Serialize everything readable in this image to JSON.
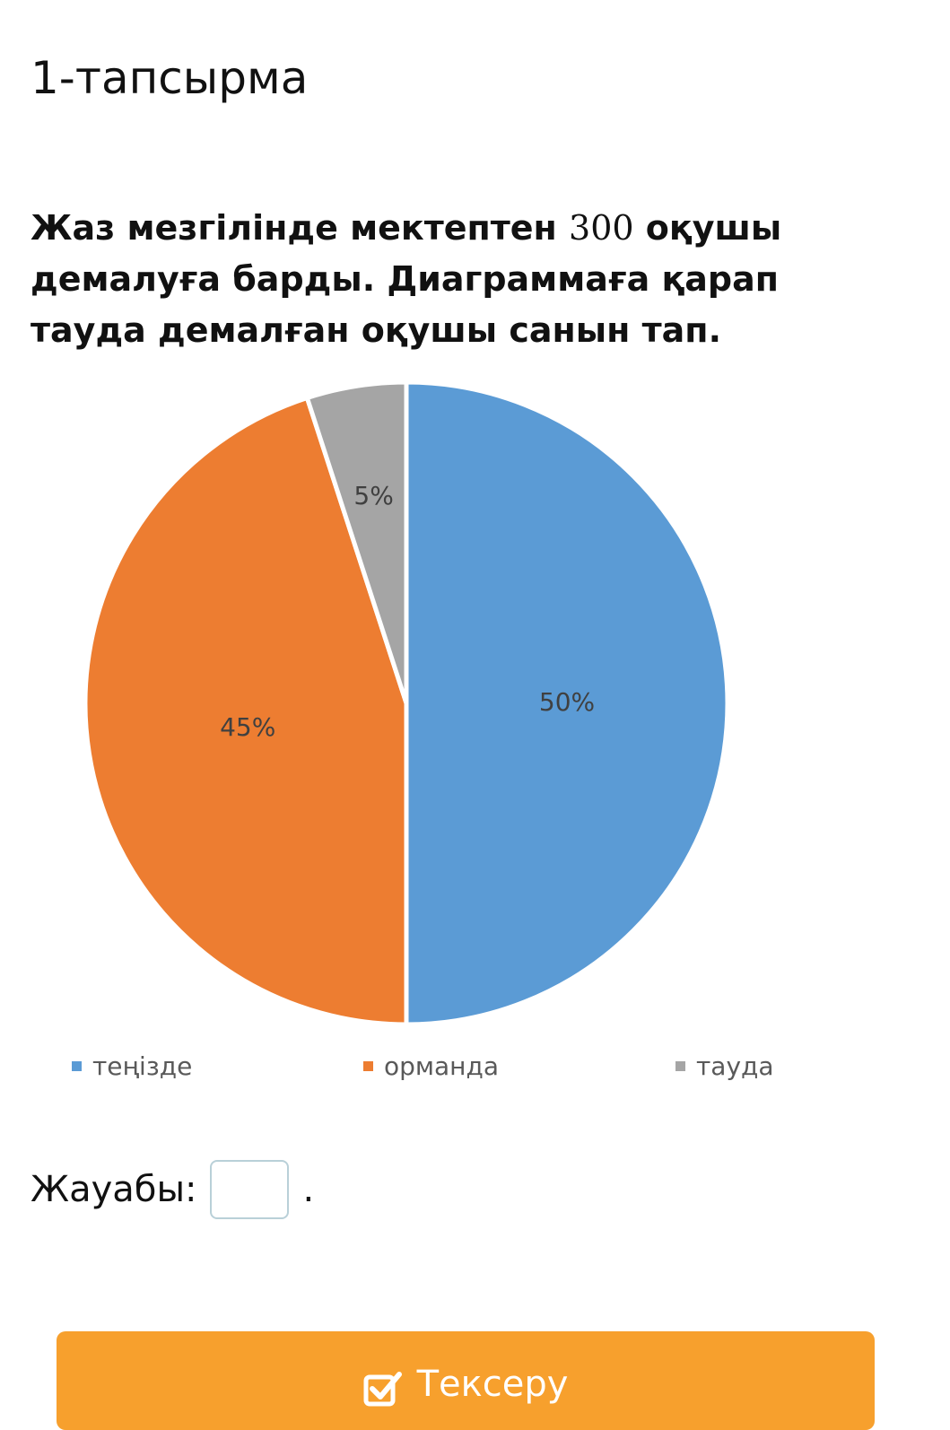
{
  "task": {
    "title": "1-тапсырма"
  },
  "question": {
    "part1": "Жаз мезгілінде мектептен ",
    "number": "300",
    "part2": " оқушы демалуға барды. Диаграммаға қарап тауда демалған оқушы санын тап."
  },
  "chart_data": {
    "type": "pie",
    "categories": [
      "теңізде",
      "орманда",
      "тауда"
    ],
    "values": [
      50,
      45,
      5
    ],
    "labels": [
      "50%",
      "45%",
      "5%"
    ],
    "colors": [
      "#5b9bd5",
      "#ed7d31",
      "#a5a5a5"
    ],
    "legend_position": "bottom"
  },
  "answer": {
    "label": "Жауабы:",
    "value": "",
    "suffix": "."
  },
  "check_button": {
    "label": "Тексеру",
    "icon": "checkbox-check-icon",
    "color": "#f7a02d"
  }
}
